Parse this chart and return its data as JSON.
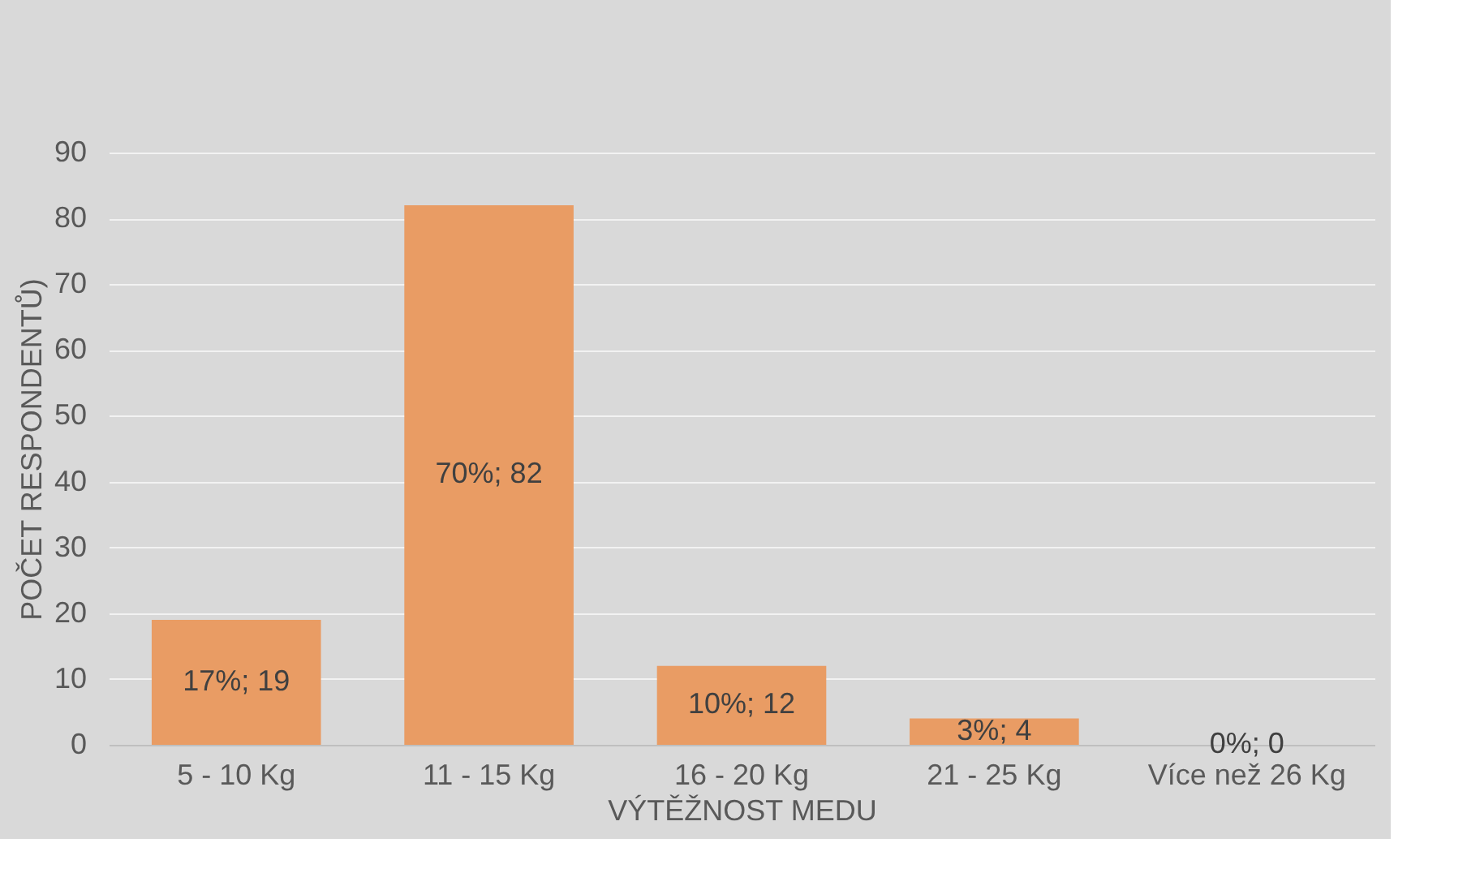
{
  "chart_data": {
    "type": "bar",
    "categories": [
      "5 - 10 Kg",
      "11 - 15 Kg",
      "16 - 20 Kg",
      "21 - 25 Kg",
      "Více než 26 Kg"
    ],
    "values": [
      19,
      82,
      12,
      4,
      0
    ],
    "value_labels": [
      "17%; 19",
      "70%; 82",
      "10%; 12",
      "3%; 4",
      "0%; 0"
    ],
    "color": "#e99c64",
    "xlabel": "VÝTĚŽNOST MEDU",
    "ylabel": "POČET RESPONDENTŮ)",
    "ylim": [
      0,
      90
    ],
    "yticks": [
      0,
      10,
      20,
      30,
      40,
      50,
      60,
      70,
      80,
      90
    ],
    "grid": "y"
  }
}
